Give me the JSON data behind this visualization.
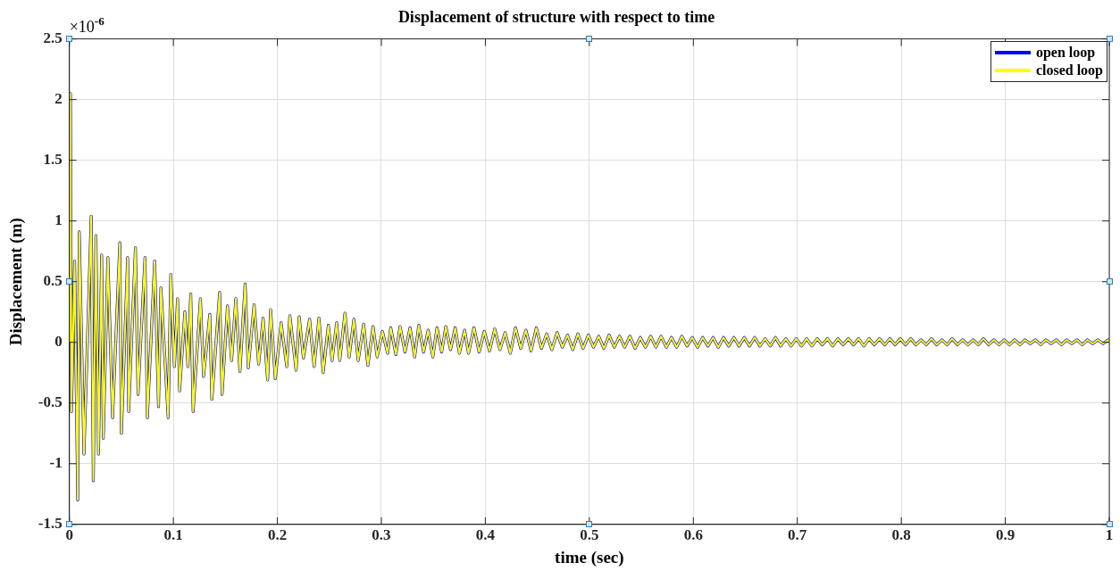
{
  "chart_data": {
    "type": "line",
    "title": "Displacement of structure with respect to time",
    "xlabel": "time (sec)",
    "ylabel": "Displacement (m)",
    "annotations": [
      "×10$^{-6}$"
    ],
    "x": [
      0,
      0.001,
      0.002,
      0.005,
      0.008,
      0.0095,
      0.014,
      0.021,
      0.023,
      0.0255,
      0.028,
      0.031,
      0.0326,
      0.037,
      0.0415,
      0.0485,
      0.05,
      0.056,
      0.057,
      0.0635,
      0.066,
      0.0727,
      0.075,
      0.082,
      0.0857,
      0.088,
      0.095,
      0.0975,
      0.101,
      0.104,
      0.106,
      0.111,
      0.114,
      0.1167,
      0.119,
      0.126,
      0.129,
      0.135,
      0.137,
      0.1445,
      0.1468,
      0.152,
      0.156,
      0.16,
      0.164,
      0.169,
      0.172,
      0.1776,
      0.182,
      0.1863,
      0.1906,
      0.1935,
      0.198,
      0.2036,
      0.209,
      0.212,
      0.218,
      0.221,
      0.225,
      0.231,
      0.2353,
      0.24,
      0.244,
      0.249,
      0.2526,
      0.257,
      0.26,
      0.265,
      0.269,
      0.2736,
      0.2777,
      0.283,
      0.287,
      0.292,
      0.296,
      0.301,
      0.306,
      0.309,
      0.314,
      0.318,
      0.3227,
      0.3276,
      0.332,
      0.336,
      0.3406,
      0.345,
      0.3495,
      0.3535,
      0.358,
      0.362,
      0.3665,
      0.371,
      0.375,
      0.38,
      0.3838,
      0.389,
      0.394,
      0.399,
      0.404,
      0.409,
      0.414,
      0.419,
      0.424,
      0.429,
      0.434,
      0.439,
      0.444,
      0.449,
      0.454,
      0.459,
      0.464,
      0.469,
      0.474,
      0.479,
      0.484,
      0.489,
      0.494,
      0.499,
      0.504,
      0.509,
      0.514,
      0.519,
      0.524,
      0.529,
      0.534,
      0.539,
      0.544,
      0.549,
      0.554,
      0.559,
      0.564,
      0.569,
      0.574,
      0.579,
      0.584,
      0.589,
      0.594,
      0.599,
      0.604,
      0.609,
      0.614,
      0.619,
      0.624,
      0.629,
      0.634,
      0.639,
      0.644,
      0.649,
      0.654,
      0.659,
      0.664,
      0.669,
      0.674,
      0.679,
      0.684,
      0.689,
      0.694,
      0.699,
      0.704,
      0.709,
      0.714,
      0.719,
      0.724,
      0.729,
      0.734,
      0.739,
      0.744,
      0.749,
      0.754,
      0.759,
      0.764,
      0.769,
      0.774,
      0.779,
      0.784,
      0.789,
      0.794,
      0.799,
      0.804,
      0.809,
      0.814,
      0.819,
      0.824,
      0.829,
      0.834,
      0.839,
      0.844,
      0.849,
      0.854,
      0.859,
      0.864,
      0.869,
      0.874,
      0.879,
      0.884,
      0.889,
      0.894,
      0.899,
      0.904,
      0.909,
      0.914,
      0.919,
      0.924,
      0.929,
      0.934,
      0.939,
      0.944,
      0.949,
      0.954,
      0.959,
      0.964,
      0.969,
      0.974,
      0.979,
      0.984,
      0.989,
      0.994,
      0.999,
      1
    ],
    "series": [
      {
        "name": "open loop",
        "color": "#0000ff",
        "values": [
          0,
          2.05,
          -0.57,
          0.67,
          -1.3,
          0.91,
          -0.92,
          1.04,
          -1.14,
          0.88,
          -0.92,
          0.72,
          -0.79,
          0.7,
          -0.62,
          0.82,
          -0.75,
          0.7,
          -0.57,
          0.78,
          -0.43,
          0.7,
          -0.62,
          0.67,
          -0.53,
          0.45,
          -0.62,
          0.56,
          -0.2,
          0.36,
          -0.4,
          0.25,
          -0.2,
          0.4,
          -0.57,
          0.36,
          -0.28,
          0.23,
          -0.47,
          0.41,
          -0.43,
          0.3,
          -0.15,
          0.36,
          -0.24,
          0.48,
          -0.21,
          0.31,
          -0.18,
          0.2,
          -0.31,
          0.27,
          -0.3,
          0.16,
          -0.2,
          0.22,
          -0.23,
          0.21,
          -0.13,
          0.19,
          -0.2,
          0.2,
          -0.25,
          0.14,
          -0.15,
          0.16,
          -0.15,
          0.24,
          -0.12,
          0.19,
          -0.15,
          0.15,
          -0.19,
          0.13,
          -0.12,
          0.09,
          -0.09,
          0.12,
          -0.1,
          0.13,
          -0.08,
          0.12,
          -0.12,
          0.14,
          -0.08,
          0.1,
          -0.12,
          0.12,
          -0.08,
          0.13,
          -0.06,
          0.12,
          -0.09,
          0.1,
          -0.09,
          0.12,
          -0.08,
          0.09,
          -0.07,
          0.11,
          -0.06,
          0.08,
          -0.09,
          0.12,
          -0.05,
          0.1,
          -0.07,
          0.12,
          -0.05,
          0.07,
          -0.06,
          0.08,
          -0.04,
          0.06,
          -0.06,
          0.07,
          -0.05,
          0.06,
          -0.04,
          0.05,
          -0.05,
          0.06,
          -0.04,
          0.05,
          -0.04,
          0.05,
          -0.05,
          0.04,
          -0.04,
          0.05,
          -0.04,
          0.05,
          -0.04,
          0.04,
          -0.04,
          0.05,
          -0.03,
          0.04,
          -0.04,
          0.04,
          -0.03,
          0.04,
          -0.04,
          0.04,
          -0.03,
          0.04,
          -0.03,
          0.04,
          -0.03,
          0.04,
          -0.03,
          0.03,
          -0.03,
          0.04,
          -0.03,
          0.03,
          -0.03,
          0.03,
          -0.03,
          0.03,
          -0.03,
          0.03,
          -0.02,
          0.03,
          -0.03,
          0.03,
          -0.02,
          0.03,
          -0.02,
          0.03,
          -0.03,
          0.03,
          -0.02,
          0.03,
          -0.02,
          0.03,
          -0.02,
          0.03,
          -0.02,
          0.03,
          -0.02,
          0.02,
          -0.02,
          0.03,
          -0.02,
          0.02,
          -0.02,
          0.03,
          -0.02,
          0.02,
          -0.02,
          0.02,
          -0.02,
          0.03,
          -0.02,
          0.02,
          -0.02,
          0.02,
          -0.02,
          0.02,
          -0.02,
          0.02,
          -0.01,
          0.02,
          -0.02,
          0.02,
          -0.01,
          0.02,
          -0.02,
          0.02,
          -0.01,
          0.02,
          -0.02,
          0.02,
          -0.01,
          0.02,
          -0.01,
          0.02,
          0
        ]
      },
      {
        "name": "closed loop",
        "color": "#ffff00",
        "values": [
          0,
          2.05,
          -0.57,
          0.67,
          -1.3,
          0.91,
          -0.92,
          1.04,
          -1.14,
          0.88,
          -0.92,
          0.72,
          -0.79,
          0.7,
          -0.62,
          0.82,
          -0.75,
          0.7,
          -0.57,
          0.78,
          -0.43,
          0.7,
          -0.62,
          0.67,
          -0.53,
          0.45,
          -0.62,
          0.56,
          -0.2,
          0.36,
          -0.4,
          0.25,
          -0.2,
          0.4,
          -0.57,
          0.36,
          -0.28,
          0.23,
          -0.47,
          0.41,
          -0.43,
          0.3,
          -0.15,
          0.36,
          -0.24,
          0.48,
          -0.21,
          0.31,
          -0.18,
          0.2,
          -0.31,
          0.27,
          -0.3,
          0.16,
          -0.2,
          0.22,
          -0.23,
          0.21,
          -0.13,
          0.19,
          -0.2,
          0.2,
          -0.25,
          0.14,
          -0.15,
          0.16,
          -0.15,
          0.24,
          -0.12,
          0.19,
          -0.15,
          0.15,
          -0.19,
          0.13,
          -0.12,
          0.09,
          -0.09,
          0.12,
          -0.1,
          0.13,
          -0.08,
          0.12,
          -0.12,
          0.14,
          -0.08,
          0.1,
          -0.12,
          0.12,
          -0.08,
          0.13,
          -0.06,
          0.12,
          -0.09,
          0.1,
          -0.09,
          0.12,
          -0.08,
          0.09,
          -0.07,
          0.11,
          -0.06,
          0.08,
          -0.09,
          0.12,
          -0.05,
          0.1,
          -0.07,
          0.12,
          -0.05,
          0.07,
          -0.06,
          0.08,
          -0.04,
          0.06,
          -0.06,
          0.07,
          -0.05,
          0.06,
          -0.04,
          0.05,
          -0.05,
          0.06,
          -0.04,
          0.05,
          -0.04,
          0.05,
          -0.05,
          0.04,
          -0.04,
          0.05,
          -0.04,
          0.05,
          -0.04,
          0.04,
          -0.04,
          0.05,
          -0.03,
          0.04,
          -0.04,
          0.04,
          -0.03,
          0.04,
          -0.04,
          0.04,
          -0.03,
          0.04,
          -0.03,
          0.04,
          -0.03,
          0.04,
          -0.03,
          0.03,
          -0.03,
          0.04,
          -0.03,
          0.03,
          -0.03,
          0.03,
          -0.03,
          0.03,
          -0.03,
          0.03,
          -0.02,
          0.03,
          -0.03,
          0.03,
          -0.02,
          0.03,
          -0.02,
          0.03,
          -0.03,
          0.03,
          -0.02,
          0.03,
          -0.02,
          0.03,
          -0.02,
          0.03,
          -0.02,
          0.03,
          -0.02,
          0.02,
          -0.02,
          0.03,
          -0.02,
          0.02,
          -0.02,
          0.03,
          -0.02,
          0.02,
          -0.02,
          0.02,
          -0.02,
          0.03,
          -0.02,
          0.02,
          -0.02,
          0.02,
          -0.02,
          0.02,
          -0.02,
          0.02,
          -0.01,
          0.02,
          -0.02,
          0.02,
          -0.01,
          0.02,
          -0.02,
          0.02,
          -0.01,
          0.02,
          -0.02,
          0.02,
          -0.01,
          0.02,
          -0.01,
          0.02,
          0
        ]
      }
    ],
    "xlim": [
      0,
      1
    ],
    "xticks": [
      0,
      0.1,
      0.2,
      0.3,
      0.4,
      0.5,
      0.6,
      0.7,
      0.8,
      0.9,
      1
    ],
    "ylim": [
      -1.5,
      2.5
    ],
    "yticks": [
      -1.5,
      -1,
      -0.5,
      0,
      0.5,
      1,
      1.5,
      2,
      2.5
    ],
    "grid": true,
    "legend": "top right",
    "marker": "none",
    "line_style": "solid"
  }
}
